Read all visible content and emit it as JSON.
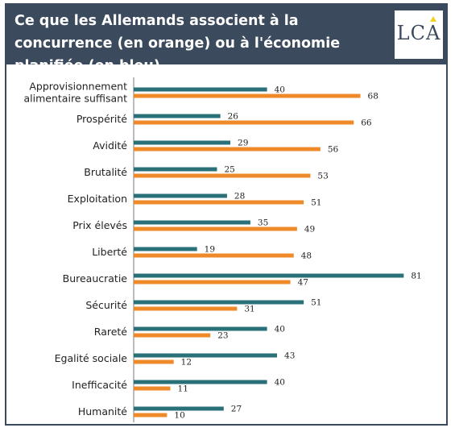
{
  "title": "Ce que les Allemands associent à la concurrence (en orange) ou à l'économie planifiée (en bleu)",
  "logo": {
    "text": "LCA"
  },
  "colors": {
    "header_bg": "#3b4a5c",
    "planned": "#2a7078",
    "competition": "#ef8a2b",
    "axis": "#7a7a7a"
  },
  "chart_data": {
    "type": "bar",
    "orientation": "horizontal",
    "title": "Ce que les Allemands associent à la concurrence (en orange) ou à l'économie planifiée (en bleu)",
    "categories": [
      [
        "Approvisionnement",
        "alimentaire suffisant"
      ],
      [
        "Prospérité"
      ],
      [
        "Avidité"
      ],
      [
        "Brutalité"
      ],
      [
        "Exploitation"
      ],
      [
        "Prix élevés"
      ],
      [
        "Liberté"
      ],
      [
        "Bureaucratie"
      ],
      [
        "Sécurité"
      ],
      [
        "Rareté"
      ],
      [
        "Egalité sociale"
      ],
      [
        "Inefficacité"
      ],
      [
        "Humanité"
      ]
    ],
    "series": [
      {
        "key": "planned",
        "values": [
          40,
          26,
          29,
          25,
          28,
          35,
          19,
          81,
          51,
          40,
          43,
          40,
          27
        ]
      },
      {
        "key": "competition",
        "values": [
          68,
          66,
          56,
          53,
          51,
          49,
          48,
          47,
          31,
          23,
          12,
          11,
          10
        ]
      }
    ],
    "xlim": [
      0,
      81
    ],
    "data_labels": true,
    "legend": "none",
    "grid": false
  }
}
